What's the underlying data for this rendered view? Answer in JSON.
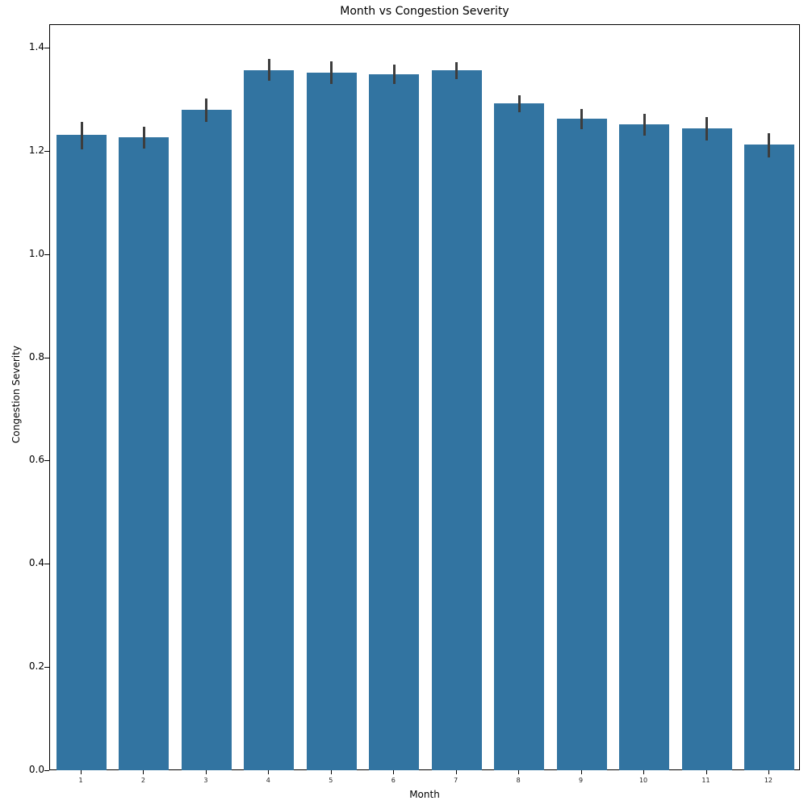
{
  "chart_data": {
    "type": "bar",
    "title": "Month vs Congestion Severity",
    "xlabel": "Month",
    "ylabel": "Congestion Severity",
    "categories": [
      "1",
      "2",
      "3",
      "4",
      "5",
      "6",
      "7",
      "8",
      "9",
      "10",
      "11",
      "12"
    ],
    "values": [
      1.233,
      1.228,
      1.281,
      1.358,
      1.353,
      1.35,
      1.358,
      1.294,
      1.264,
      1.253,
      1.245,
      1.214
    ],
    "error_bars": {
      "low": [
        1.204,
        1.206,
        1.258,
        1.337,
        1.331,
        1.331,
        1.34,
        1.276,
        1.244,
        1.231,
        1.222,
        1.189
      ],
      "high": [
        1.257,
        1.248,
        1.303,
        1.379,
        1.375,
        1.368,
        1.374,
        1.31,
        1.282,
        1.274,
        1.267,
        1.236
      ]
    },
    "ylim": [
      0.0,
      1.445
    ],
    "yticks": [
      "0.0",
      "0.2",
      "0.4",
      "0.6",
      "0.8",
      "1.0",
      "1.2",
      "1.4"
    ],
    "grid": false,
    "legend": null,
    "bar_color": "#3274a1",
    "errorbar_color": "#3d3d3d"
  }
}
